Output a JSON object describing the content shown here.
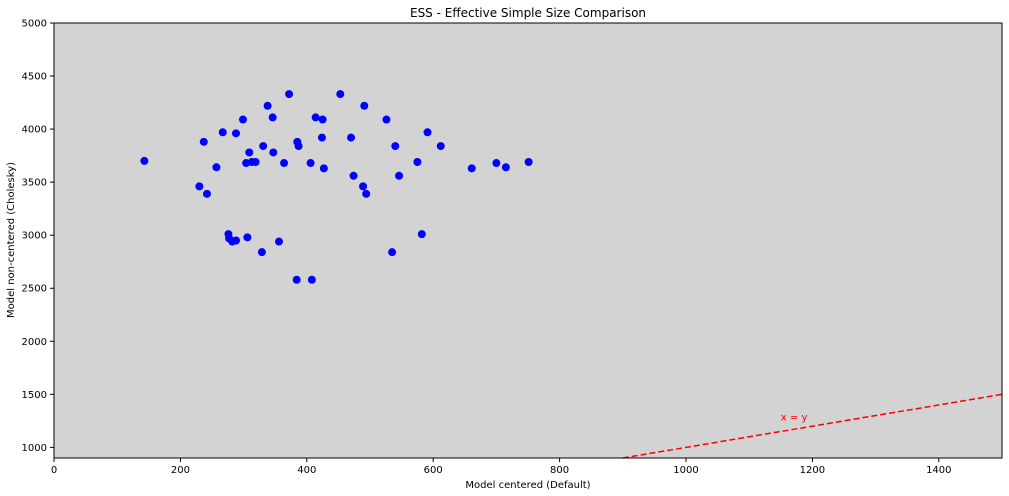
{
  "chart_data": {
    "type": "scatter",
    "title": "ESS - Effective Simple Size Comparison",
    "xlabel": "Model centered (Default)",
    "ylabel": "Model non-centered (Cholesky)",
    "xlim": [
      0,
      1500
    ],
    "ylim": [
      900,
      5000
    ],
    "xticks": [
      0,
      200,
      400,
      600,
      800,
      1000,
      1200,
      1400
    ],
    "yticks": [
      1000,
      1500,
      2000,
      2500,
      3000,
      3500,
      4000,
      4500,
      5000
    ],
    "grid": false,
    "background_color": "#d3d3d3",
    "point_color": "#0000ff",
    "series": [
      {
        "points": [
          [
            143,
            3700
          ],
          [
            230,
            3460
          ],
          [
            237,
            3880
          ],
          [
            242,
            3390
          ],
          [
            257,
            3640
          ],
          [
            267,
            3970
          ],
          [
            276,
            3010
          ],
          [
            277,
            2970
          ],
          [
            282,
            2940
          ],
          [
            288,
            2950
          ],
          [
            288,
            3960
          ],
          [
            299,
            4090
          ],
          [
            304,
            3680
          ],
          [
            306,
            2980
          ],
          [
            309,
            3780
          ],
          [
            313,
            3690
          ],
          [
            319,
            3690
          ],
          [
            329,
            2840
          ],
          [
            331,
            3840
          ],
          [
            338,
            4220
          ],
          [
            346,
            4110
          ],
          [
            347,
            3780
          ],
          [
            356,
            2940
          ],
          [
            364,
            3680
          ],
          [
            372,
            4330
          ],
          [
            384,
            2580
          ],
          [
            385,
            3880
          ],
          [
            387,
            3840
          ],
          [
            406,
            3680
          ],
          [
            408,
            2580
          ],
          [
            414,
            4110
          ],
          [
            424,
            3920
          ],
          [
            425,
            4090
          ],
          [
            427,
            3630
          ],
          [
            453,
            4330
          ],
          [
            470,
            3920
          ],
          [
            474,
            3560
          ],
          [
            489,
            3460
          ],
          [
            491,
            4220
          ],
          [
            494,
            3390
          ],
          [
            526,
            4090
          ],
          [
            535,
            2840
          ],
          [
            540,
            3840
          ],
          [
            546,
            3560
          ],
          [
            575,
            3690
          ],
          [
            582,
            3010
          ],
          [
            591,
            3970
          ],
          [
            612,
            3840
          ],
          [
            661,
            3630
          ],
          [
            700,
            3680
          ],
          [
            715,
            3640
          ],
          [
            751,
            3690
          ]
        ]
      }
    ],
    "reference_line": {
      "label": "x = y",
      "color": "#ff0000",
      "style": "dashed",
      "label_x": 1150,
      "label_y": 1255
    }
  }
}
